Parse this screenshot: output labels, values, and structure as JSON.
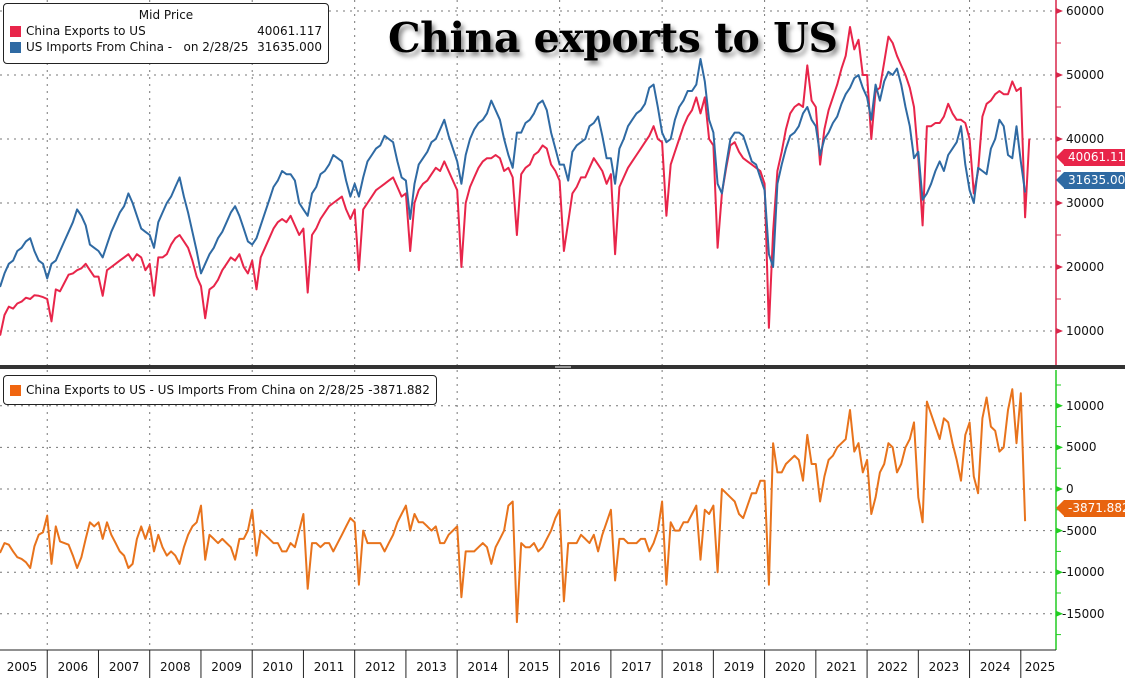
{
  "title": "China exports to US",
  "colors": {
    "exports": "#e8254a",
    "imports": "#2f6aa3",
    "diff": "#e8731c",
    "upper_axis": "#d8264a",
    "lower_axis": "#22cc22"
  },
  "upper_legend": {
    "header": "Mid Price",
    "items": [
      {
        "label": "China Exports to US",
        "value": "40061.117"
      },
      {
        "label": "US Imports From China -   on 2/28/25",
        "value": "31635.000"
      }
    ]
  },
  "lower_legend": {
    "label": "China Exports to US - US Imports From China on 2/28/25 -3871.882"
  },
  "tags": {
    "exports": "40061.117",
    "imports": "31635.000",
    "diff": "-3871.882"
  },
  "chart_data": [
    {
      "type": "line",
      "panel": "upper",
      "x_start": "2005-01",
      "frequency": "monthly",
      "ylim": [
        5000,
        65000
      ],
      "yticks": [
        "10000",
        "20000",
        "30000",
        "40000",
        "50000",
        "60000"
      ],
      "grid": true,
      "legend_placement": "top-left",
      "series": [
        {
          "name": "China Exports to US",
          "values": [
            10600,
            9400,
            12500,
            13800,
            13500,
            14300,
            14600,
            15200,
            15000,
            15600,
            15500,
            15300,
            15000,
            11500,
            16500,
            16200,
            17500,
            18800,
            19000,
            19500,
            19800,
            20500,
            19500,
            18500,
            18500,
            15500,
            19500,
            20000,
            20500,
            21000,
            21500,
            22000,
            21000,
            22000,
            21500,
            19500,
            20500,
            15500,
            21500,
            21500,
            22000,
            23500,
            24500,
            25000,
            24000,
            23000,
            21000,
            18500,
            17000,
            12000,
            16500,
            17000,
            18000,
            19500,
            20500,
            21500,
            21000,
            22000,
            20000,
            19000,
            21000,
            16500,
            21500,
            23000,
            24500,
            26000,
            27000,
            27500,
            27000,
            28000,
            26500,
            25000,
            26000,
            16000,
            25000,
            26000,
            27500,
            28500,
            29500,
            30000,
            30500,
            31000,
            29000,
            27500,
            29000,
            19500,
            29000,
            30000,
            31000,
            32000,
            32500,
            33000,
            33500,
            34000,
            32500,
            31000,
            31500,
            22500,
            30000,
            32000,
            33000,
            33500,
            34500,
            35500,
            35000,
            36500,
            35000,
            33500,
            32000,
            20000,
            30000,
            32500,
            34000,
            35500,
            36500,
            37000,
            37000,
            37500,
            37000,
            35000,
            35500,
            34000,
            25000,
            34500,
            35500,
            36000,
            37500,
            38000,
            39000,
            38500,
            36000,
            35000,
            33500,
            22500,
            27000,
            31500,
            32500,
            34000,
            34000,
            35500,
            37000,
            36000,
            35000,
            33000,
            34500,
            22000,
            32500,
            34000,
            35500,
            36500,
            37500,
            38500,
            39500,
            40500,
            42000,
            40000,
            39500,
            28000,
            36000,
            38000,
            40000,
            42000,
            43500,
            44500,
            46500,
            44000,
            46500,
            40000,
            39000,
            23000,
            31500,
            35500,
            39000,
            39500,
            38000,
            37000,
            36500,
            36000,
            35500,
            35000,
            33000,
            10500,
            25500,
            35000,
            38000,
            41500,
            44000,
            45000,
            45500,
            45000,
            51500,
            46000,
            45000,
            36000,
            41500,
            44500,
            46500,
            48500,
            51000,
            53000,
            57500,
            54000,
            55500,
            50000,
            50000,
            40000,
            47500,
            48000,
            52000,
            56000,
            55000,
            53000,
            51500,
            50000,
            48000,
            45000,
            37000,
            26500,
            42000,
            42000,
            42500,
            42500,
            43500,
            45500,
            44000,
            43000,
            43000,
            42500,
            40000,
            31500,
            35000,
            43500,
            45500,
            46000,
            47000,
            47500,
            47000,
            47000,
            49000,
            47500,
            48000,
            27763,
            40061.117
          ]
        },
        {
          "name": "US Imports From China",
          "values": [
            18000,
            17000,
            19000,
            20500,
            21000,
            22500,
            23000,
            24000,
            24500,
            22500,
            21000,
            20500,
            18200,
            20500,
            21000,
            22500,
            24000,
            25500,
            27000,
            29000,
            28000,
            26500,
            23500,
            23000,
            22500,
            21500,
            23500,
            25500,
            27000,
            28500,
            29500,
            31500,
            30000,
            28000,
            26000,
            25500,
            25000,
            23000,
            27000,
            28500,
            30000,
            31000,
            32500,
            34000,
            31000,
            28500,
            25500,
            22500,
            19000,
            20500,
            22000,
            23000,
            24500,
            25500,
            27000,
            28500,
            29500,
            28000,
            26000,
            24000,
            23500,
            24500,
            26500,
            28500,
            30500,
            32500,
            33500,
            35000,
            34500,
            34500,
            33500,
            30000,
            29000,
            28000,
            31500,
            32500,
            34500,
            35000,
            36000,
            37500,
            37000,
            36500,
            33500,
            31000,
            33000,
            31000,
            34000,
            36500,
            37500,
            38500,
            39000,
            40500,
            40000,
            39500,
            36500,
            34000,
            33500,
            27500,
            33000,
            36000,
            37000,
            38000,
            39500,
            40000,
            41500,
            43000,
            40500,
            38500,
            36500,
            33000,
            37500,
            40000,
            41500,
            42500,
            43000,
            44000,
            46000,
            44500,
            43000,
            40000,
            37500,
            35500,
            41000,
            41000,
            42500,
            43000,
            44000,
            45500,
            46000,
            44500,
            41000,
            38500,
            36000,
            36000,
            33500,
            38000,
            39000,
            39500,
            40000,
            42000,
            42500,
            43500,
            40500,
            37000,
            37000,
            33000,
            38500,
            40000,
            42000,
            43000,
            44000,
            44500,
            45500,
            48000,
            48500,
            45000,
            41000,
            39500,
            40000,
            43000,
            45000,
            46000,
            47500,
            47500,
            48500,
            52500,
            49000,
            43000,
            41000,
            33000,
            31500,
            36000,
            40000,
            41000,
            41000,
            40500,
            38500,
            36500,
            36000,
            34000,
            32000,
            22000,
            20000,
            33000,
            36000,
            38500,
            40500,
            41000,
            42000,
            44000,
            45000,
            43000,
            42000,
            37500,
            40000,
            41000,
            42500,
            43500,
            45500,
            47000,
            48000,
            49500,
            50000,
            48000,
            46500,
            43000,
            48500,
            46000,
            49000,
            50500,
            50000,
            51000,
            48500,
            45000,
            42000,
            37000,
            38000,
            30500,
            31500,
            33000,
            35000,
            36500,
            35000,
            37500,
            38500,
            39500,
            42000,
            36000,
            32000,
            30000,
            35500,
            35000,
            34500,
            38500,
            40000,
            43000,
            42000,
            37500,
            37000,
            42000,
            36500,
            31635
          ]
        }
      ]
    },
    {
      "type": "line",
      "panel": "lower",
      "x_start": "2005-01",
      "frequency": "monthly",
      "ylim": [
        -18000,
        14000
      ],
      "yticks": [
        "-15000",
        "-10000",
        "-5000",
        "0",
        "5000",
        "10000"
      ],
      "grid": true,
      "legend_placement": "top-left",
      "series": [
        {
          "name": "China Exports to US - US Imports From China",
          "values": [
            -7400,
            -7600,
            -6500,
            -6700,
            -7500,
            -8200,
            -8400,
            -8800,
            -9500,
            -6900,
            -5500,
            -5200,
            -3200,
            -9000,
            -4500,
            -6300,
            -6500,
            -6700,
            -8000,
            -9500,
            -8200,
            -6000,
            -4000,
            -4500,
            -4000,
            -6000,
            -4000,
            -5500,
            -6500,
            -7500,
            -8000,
            -9500,
            -9000,
            -6000,
            -4500,
            -6000,
            -4500,
            -7500,
            -5500,
            -7000,
            -8000,
            -7500,
            -8000,
            -9000,
            -7000,
            -5500,
            -4500,
            -4000,
            -2000,
            -8500,
            -5500,
            -6000,
            -6500,
            -6000,
            -6500,
            -7000,
            -8500,
            -6000,
            -6000,
            -5000,
            -2500,
            -8000,
            -5000,
            -5500,
            -6000,
            -6500,
            -6500,
            -7500,
            -7500,
            -6500,
            -7000,
            -5000,
            -3000,
            -12000,
            -6500,
            -6500,
            -7000,
            -6500,
            -6500,
            -7500,
            -6500,
            -5500,
            -4500,
            -3500,
            -4000,
            -11500,
            -5000,
            -6500,
            -6500,
            -6500,
            -6500,
            -7500,
            -6500,
            -5500,
            -4000,
            -3000,
            -2000,
            -5000,
            -3000,
            -4000,
            -4000,
            -4500,
            -5000,
            -4500,
            -6500,
            -6500,
            -5500,
            -5000,
            -4500,
            -13000,
            -7500,
            -7500,
            -7500,
            -7000,
            -6500,
            -7000,
            -9000,
            -7000,
            -6000,
            -5000,
            -2000,
            -1500,
            -16000,
            -6500,
            -7000,
            -7000,
            -6500,
            -7500,
            -7000,
            -6000,
            -5000,
            -3500,
            -2500,
            -13500,
            -6500,
            -6500,
            -6500,
            -5500,
            -6000,
            -6500,
            -5500,
            -7500,
            -5500,
            -4000,
            -2500,
            -11000,
            -6000,
            -6000,
            -6500,
            -6500,
            -6500,
            -6000,
            -6000,
            -7500,
            -6500,
            -5000,
            -1500,
            -11500,
            -4000,
            -5000,
            -5000,
            -4000,
            -4000,
            -3000,
            -2000,
            -8500,
            -2500,
            -3000,
            -2000,
            -10000,
            0,
            -500,
            -1000,
            -1500,
            -3000,
            -3500,
            -2000,
            -500,
            -500,
            1000,
            1000,
            -11500,
            5500,
            2000,
            2000,
            3000,
            3500,
            4000,
            3500,
            1000,
            6500,
            3000,
            3000,
            -1500,
            1500,
            3500,
            4000,
            5000,
            5500,
            6000,
            9500,
            4500,
            5500,
            2000,
            3500,
            -3000,
            -1000,
            2000,
            3000,
            5500,
            5000,
            2000,
            3000,
            5000,
            6000,
            8000,
            -1000,
            -4000,
            10500,
            9000,
            7500,
            6000,
            8500,
            8000,
            5500,
            3500,
            1000,
            6500,
            8000,
            1500,
            -500,
            8500,
            11000,
            7500,
            7000,
            4500,
            5000,
            9500,
            12000,
            5500,
            11500,
            -3871.882
          ]
        }
      ]
    }
  ],
  "x_axis": {
    "labels": [
      "2005",
      "2006",
      "2007",
      "2008",
      "2009",
      "2010",
      "2011",
      "2012",
      "2013",
      "2014",
      "2015",
      "2016",
      "2017",
      "2018",
      "2019",
      "2020",
      "2021",
      "2022",
      "2023",
      "2024",
      "2025"
    ]
  }
}
